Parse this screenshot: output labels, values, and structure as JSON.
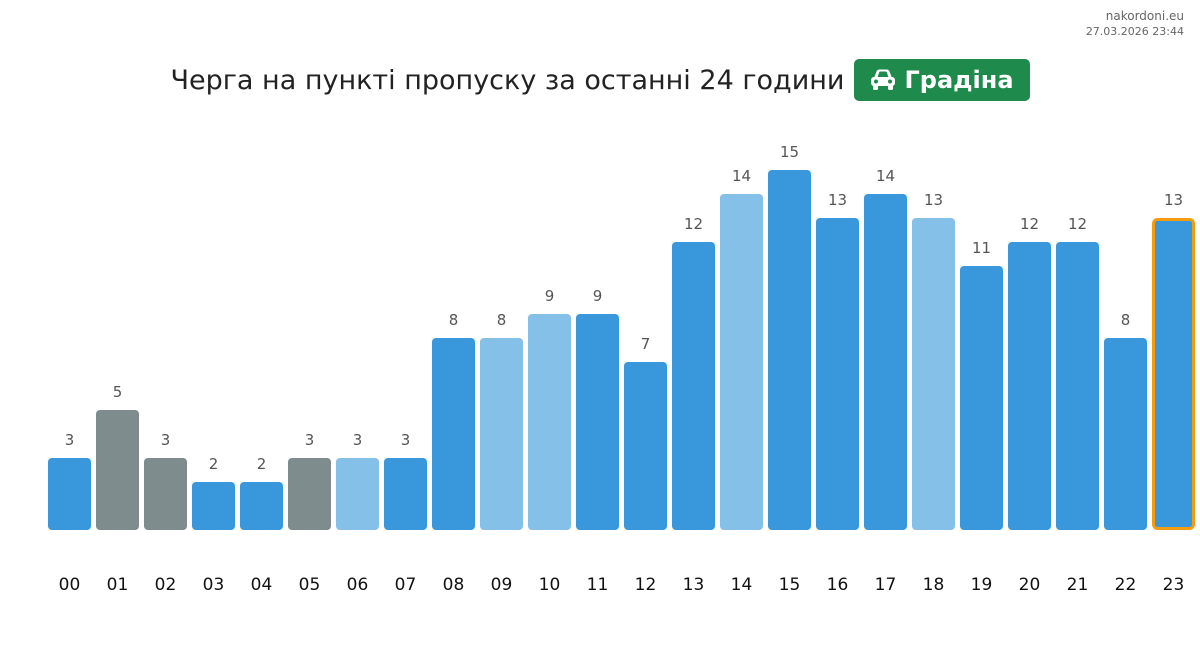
{
  "source": {
    "site": "nakordoni.eu",
    "timestamp": "27.03.2026 23:44"
  },
  "header": {
    "title": "Черга на пункті пропуску за останні 24 години",
    "badge_label": "Градіна",
    "badge_icon": "car-icon",
    "badge_color": "#1e8a4c"
  },
  "colors": {
    "blue": "#3898db",
    "light_blue": "#85c0e9",
    "gray": "#7f8c8d",
    "highlight_border": "#f39c12",
    "value_label": "#555555",
    "tick_label": "#111111"
  },
  "chart_data": {
    "type": "bar",
    "title": "Черга на пункті пропуску за останні 24 години",
    "xlabel": "",
    "ylabel": "",
    "categories": [
      "00",
      "01",
      "02",
      "03",
      "04",
      "05",
      "06",
      "07",
      "08",
      "09",
      "10",
      "11",
      "12",
      "13",
      "14",
      "15",
      "16",
      "17",
      "18",
      "19",
      "20",
      "21",
      "22",
      "23"
    ],
    "values": [
      3,
      5,
      3,
      2,
      2,
      3,
      3,
      3,
      8,
      8,
      9,
      9,
      7,
      12,
      14,
      15,
      13,
      14,
      13,
      11,
      12,
      12,
      8,
      13
    ],
    "bar_colors": [
      "blue",
      "gray",
      "gray",
      "blue",
      "blue",
      "gray",
      "light_blue",
      "blue",
      "blue",
      "light_blue",
      "light_blue",
      "blue",
      "blue",
      "blue",
      "light_blue",
      "blue",
      "blue",
      "blue",
      "light_blue",
      "blue",
      "blue",
      "blue",
      "blue",
      "blue"
    ],
    "highlighted_category": "23",
    "ylim": [
      0,
      15
    ],
    "data_labels": true,
    "grid": false,
    "legend": "none"
  }
}
